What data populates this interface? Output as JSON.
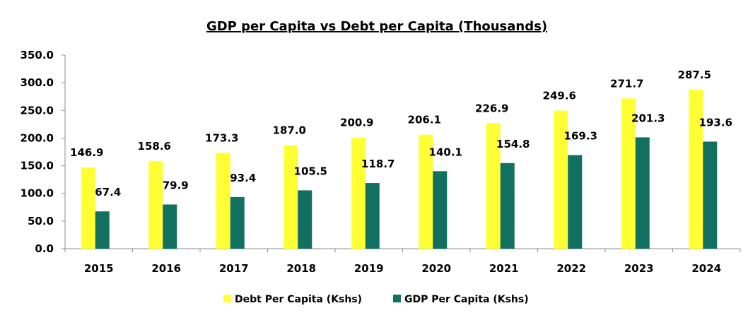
{
  "chart_data": {
    "type": "bar",
    "title": "GDP per Capita vs Debt per Capita (Thousands)",
    "xlabel": "",
    "ylabel": "",
    "categories": [
      "2015",
      "2016",
      "2017",
      "2018",
      "2019",
      "2020",
      "2021",
      "2022",
      "2023",
      "2024"
    ],
    "series": [
      {
        "name": "Debt Per Capita (Kshs)",
        "color": "#ffff33",
        "values": [
          146.9,
          158.6,
          173.3,
          187.0,
          200.9,
          206.1,
          226.9,
          249.6,
          271.7,
          287.5
        ],
        "labels": [
          "146.9",
          "158.6",
          "173.3",
          "187.0",
          "200.9",
          "206.1",
          "226.9",
          "249.6",
          "271.7",
          "287.5"
        ]
      },
      {
        "name": "GDP Per Capita (Kshs)",
        "color": "#117060",
        "values": [
          67.4,
          79.9,
          93.4,
          105.5,
          118.7,
          140.1,
          154.8,
          169.3,
          201.3,
          193.6
        ],
        "labels": [
          "67.4",
          "79.9",
          "93.4",
          "105.5",
          "118.7",
          "140.1",
          "154.8",
          "169.3",
          "201.3",
          "193.6"
        ]
      }
    ],
    "ylim": [
      0,
      350
    ],
    "yticks": [
      "0.0",
      "50.0",
      "100.0",
      "150.0",
      "200.0",
      "250.0",
      "300.0",
      "350.0"
    ],
    "grid": false,
    "legend_position": "bottom"
  }
}
